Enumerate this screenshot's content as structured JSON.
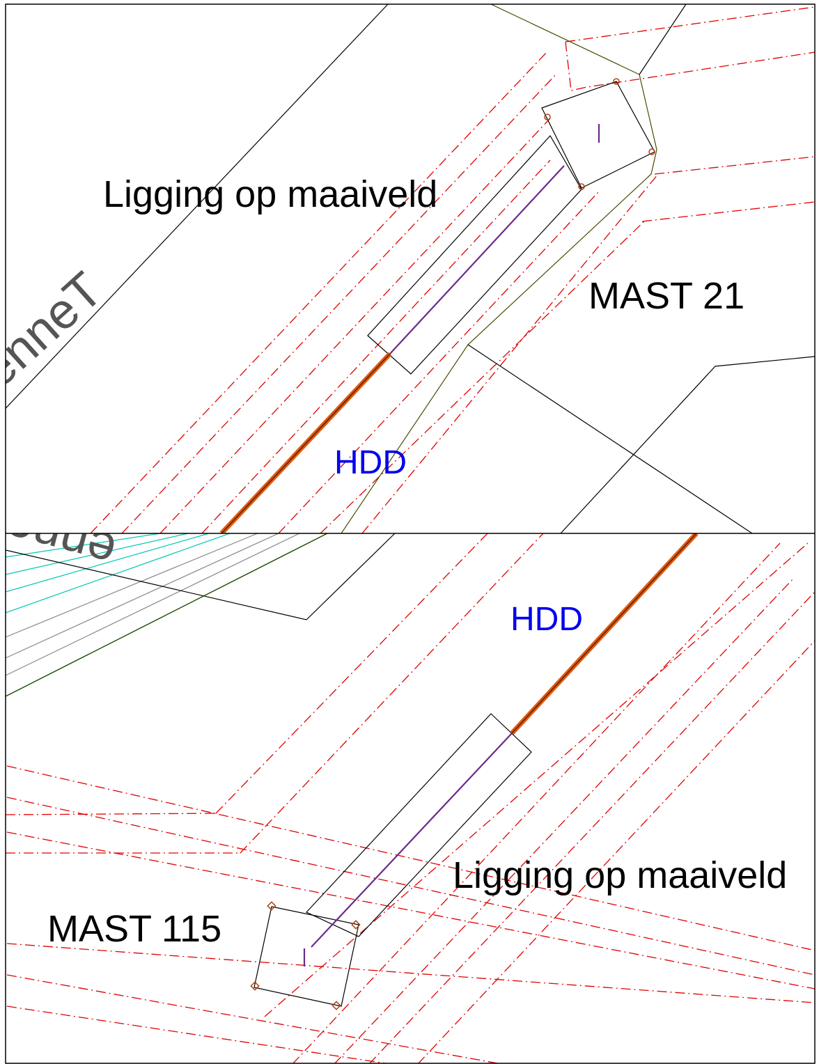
{
  "panels": [
    {
      "labels": {
        "surface": "Ligging op maaiveld",
        "mast": "MAST 21",
        "method": "HDD",
        "owner": "enneT"
      }
    },
    {
      "labels": {
        "surface": "Ligging op maaiveld",
        "mast": "MAST 115",
        "method": "HDD",
        "owner": "enneT"
      }
    }
  ]
}
